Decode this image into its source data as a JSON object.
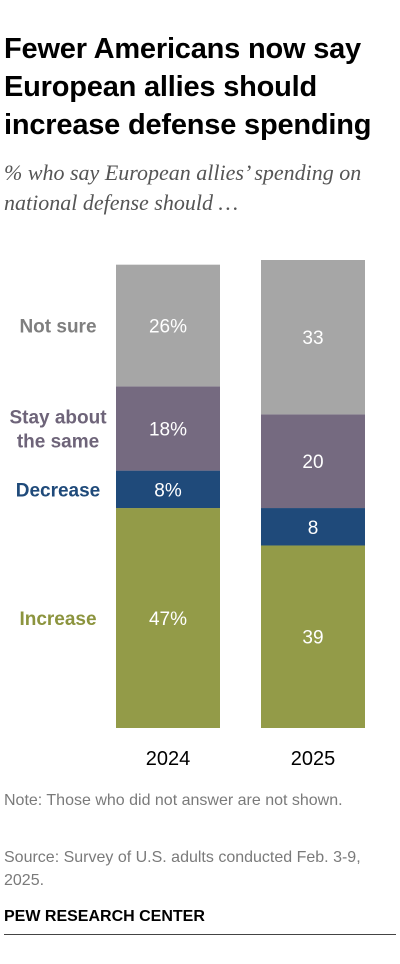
{
  "title": "Fewer Americans now say European allies should increase defense spending",
  "subtitle": "% who say European allies’ spending on national defense should …",
  "note": "Note: Those who did not answer are not shown.",
  "source": "Source: Survey of U.S. adults conducted Feb. 3-9, 2025.",
  "brand": "PEW RESEARCH CENTER",
  "chart_data": {
    "type": "bar",
    "stacked": true,
    "orientation": "vertical",
    "categories": [
      "2024",
      "2025"
    ],
    "series": [
      {
        "name": "Increase",
        "values": [
          47,
          39
        ],
        "labels": [
          "47%",
          "39"
        ],
        "color": "#939b48"
      },
      {
        "name": "Decrease",
        "values": [
          8,
          8
        ],
        "labels": [
          "8%",
          "8"
        ],
        "color": "#1f4a7a"
      },
      {
        "name": "Stay about the same",
        "values": [
          18,
          20
        ],
        "labels": [
          "18%",
          "20"
        ],
        "color": "#756a80"
      },
      {
        "name": "Not sure",
        "values": [
          26,
          33
        ],
        "labels": [
          "26%",
          "33"
        ],
        "color": "#a6a6a6"
      }
    ],
    "legend_labels": [
      {
        "series": "Not sure",
        "lines": [
          "Not sure"
        ],
        "color": "#7f7f7f"
      },
      {
        "series": "Stay about the same",
        "lines": [
          "Stay about",
          "the same"
        ],
        "color": "#6e6479"
      },
      {
        "series": "Decrease",
        "lines": [
          "Decrease"
        ],
        "color": "#1f4a7a"
      },
      {
        "series": "Increase",
        "lines": [
          "Increase"
        ],
        "color": "#8c943e"
      }
    ],
    "legend_placement": "left",
    "grid": false
  }
}
